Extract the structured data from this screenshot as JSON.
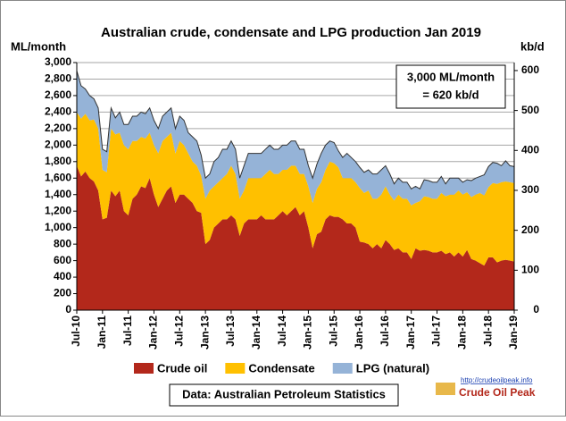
{
  "chart_data": {
    "type": "stacked_area",
    "title": "Australian crude, condensate and LPG production Jan 2019",
    "y_label": "ML/month",
    "y2_label": "kb/d",
    "annotation": [
      "3,000 ML/month",
      "= 620 kb/d"
    ],
    "source": "Data: Australian Petroleum Statistics",
    "logo": [
      "http://crudeoilpeak.info",
      "Crude Oil Peak"
    ],
    "categories": [
      "Jul-10",
      null,
      null,
      null,
      null,
      null,
      "Jan-11",
      null,
      null,
      null,
      null,
      null,
      "Jul-11",
      null,
      null,
      null,
      null,
      null,
      "Jan-12",
      null,
      null,
      null,
      null,
      null,
      "Jul-12",
      null,
      null,
      null,
      null,
      null,
      "Jan-13",
      null,
      null,
      null,
      null,
      null,
      "Jul-13",
      null,
      null,
      null,
      null,
      null,
      "Jan-14",
      null,
      null,
      null,
      null,
      null,
      "Jul-14",
      null,
      null,
      null,
      null,
      null,
      "Jan-15",
      null,
      null,
      null,
      null,
      null,
      "Jul-15",
      null,
      null,
      null,
      null,
      null,
      "Jan-16",
      null,
      null,
      null,
      null,
      null,
      "Jul-16",
      null,
      null,
      null,
      null,
      null,
      "Jan-17",
      null,
      null,
      null,
      null,
      null,
      "Jul-17",
      null,
      null,
      null,
      null,
      null,
      "Jan-18",
      null,
      null,
      null,
      null,
      null,
      "Jul-18",
      null,
      null,
      null,
      null,
      null,
      "Jan-19"
    ],
    "series": [
      {
        "name": "Crude oil",
        "color": "#b3281b",
        "values": [
          1750,
          1620,
          1680,
          1600,
          1560,
          1450,
          1100,
          1120,
          1450,
          1380,
          1450,
          1200,
          1150,
          1350,
          1400,
          1500,
          1480,
          1600,
          1400,
          1250,
          1350,
          1450,
          1500,
          1300,
          1400,
          1400,
          1350,
          1300,
          1200,
          1180,
          800,
          850,
          1000,
          1050,
          1100,
          1100,
          1150,
          1100,
          900,
          1050,
          1100,
          1100,
          1100,
          1150,
          1100,
          1100,
          1100,
          1150,
          1200,
          1150,
          1200,
          1250,
          1150,
          1200,
          1000,
          750,
          920,
          950,
          1100,
          1150,
          1130,
          1130,
          1100,
          1050,
          1050,
          1000,
          830,
          820,
          800,
          750,
          800,
          750,
          850,
          800,
          730,
          750,
          700,
          700,
          620,
          750,
          720,
          730,
          720,
          700,
          700,
          720,
          680,
          700,
          650,
          700,
          650,
          730,
          620,
          600,
          570,
          540,
          640,
          640,
          580,
          600,
          610,
          600,
          590
        ]
      },
      {
        "name": "Condensate",
        "color": "#ffc000",
        "values": [
          650,
          700,
          700,
          700,
          750,
          750,
          600,
          550,
          750,
          750,
          700,
          800,
          800,
          700,
          650,
          600,
          600,
          550,
          600,
          650,
          700,
          650,
          650,
          600,
          650,
          600,
          550,
          500,
          550,
          450,
          550,
          600,
          500,
          500,
          500,
          550,
          600,
          550,
          450,
          400,
          500,
          500,
          500,
          450,
          550,
          600,
          550,
          500,
          500,
          550,
          550,
          500,
          500,
          450,
          500,
          550,
          550,
          600,
          600,
          650,
          650,
          600,
          500,
          550,
          550,
          550,
          650,
          600,
          650,
          600,
          550,
          650,
          650,
          600,
          600,
          650,
          650,
          650,
          650,
          550,
          600,
          650,
          650,
          650,
          650,
          700,
          700,
          700,
          750,
          750,
          750,
          700,
          750,
          800,
          850,
          850,
          850,
          900,
          950,
          950,
          950,
          950,
          950
        ]
      },
      {
        "name": "LPG (natural)",
        "color": "#95b3d7",
        "values": [
          500,
          400,
          300,
          300,
          250,
          250,
          250,
          250,
          250,
          200,
          250,
          250,
          300,
          300,
          300,
          300,
          300,
          300,
          300,
          300,
          300,
          300,
          300,
          300,
          300,
          300,
          250,
          300,
          300,
          250,
          250,
          200,
          300,
          300,
          350,
          300,
          300,
          300,
          250,
          300,
          300,
          300,
          300,
          300,
          300,
          300,
          300,
          300,
          300,
          300,
          300,
          300,
          300,
          300,
          250,
          300,
          300,
          350,
          300,
          250,
          250,
          200,
          250,
          300,
          250,
          250,
          250,
          250,
          250,
          300,
          300,
          300,
          250,
          250,
          200,
          200,
          200,
          200,
          200,
          200,
          150,
          200,
          200,
          200,
          200,
          200,
          150,
          200,
          200,
          150,
          150,
          150,
          200,
          200,
          200,
          250,
          250,
          250,
          250,
          200,
          250,
          200,
          200
        ]
      }
    ],
    "ylim": [
      0,
      3000
    ],
    "yticks": [
      0,
      200,
      400,
      600,
      800,
      {
        "value": 1000,
        "label": "1,000"
      },
      {
        "value": 1200,
        "label": "1,200"
      },
      {
        "value": 1400,
        "label": "1,400"
      },
      {
        "value": 1600,
        "label": "1,600"
      },
      {
        "value": 1800,
        "label": "1,800"
      },
      {
        "value": 2000,
        "label": "2,000"
      },
      {
        "value": 2200,
        "label": "2,200"
      },
      {
        "value": 2400,
        "label": "2,400"
      },
      {
        "value": 2600,
        "label": "2,600"
      },
      {
        "value": 2800,
        "label": "2,800"
      },
      {
        "value": 3000,
        "label": "3,000"
      }
    ],
    "y2lim": [
      0,
      620
    ],
    "y2ticks": [
      0,
      100,
      200,
      300,
      400,
      500,
      600
    ],
    "grid": true
  }
}
